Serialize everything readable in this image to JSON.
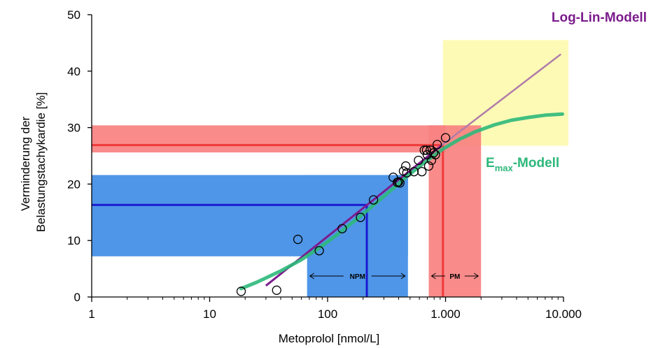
{
  "chart_data": {
    "type": "scatter",
    "xlabel": "Metoprolol [nmol/L]",
    "ylabel_lines": [
      "Verminderung der",
      "Belastungstachykardie [%]"
    ],
    "x_scale": "log",
    "xlim": [
      1,
      10000
    ],
    "ylim": [
      0,
      50
    ],
    "x_ticks": [
      {
        "value": 1,
        "label": "1"
      },
      {
        "value": 10,
        "label": "10"
      },
      {
        "value": 100,
        "label": "100"
      },
      {
        "value": 1000,
        "label": "1.000"
      },
      {
        "value": 10000,
        "label": "10.000"
      }
    ],
    "y_ticks": [
      {
        "value": 0,
        "label": "0"
      },
      {
        "value": 10,
        "label": "10"
      },
      {
        "value": 20,
        "label": "20"
      },
      {
        "value": 30,
        "label": "30"
      },
      {
        "value": 40,
        "label": "40"
      },
      {
        "value": 50,
        "label": "50"
      }
    ],
    "observations": [
      {
        "x": 18.5,
        "y": 1.0
      },
      {
        "x": 37,
        "y": 1.2
      },
      {
        "x": 56,
        "y": 10.2
      },
      {
        "x": 85,
        "y": 8.2
      },
      {
        "x": 133,
        "y": 12.1
      },
      {
        "x": 190,
        "y": 14.1
      },
      {
        "x": 245,
        "y": 17.2
      },
      {
        "x": 360,
        "y": 21.2
      },
      {
        "x": 390,
        "y": 20.3
      },
      {
        "x": 400,
        "y": 20.4
      },
      {
        "x": 410,
        "y": 20.2
      },
      {
        "x": 440,
        "y": 22.3
      },
      {
        "x": 460,
        "y": 23.2
      },
      {
        "x": 470,
        "y": 22.0
      },
      {
        "x": 540,
        "y": 22.2
      },
      {
        "x": 590,
        "y": 24.2
      },
      {
        "x": 630,
        "y": 22.2
      },
      {
        "x": 660,
        "y": 26.0
      },
      {
        "x": 690,
        "y": 26.0
      },
      {
        "x": 700,
        "y": 25.2
      },
      {
        "x": 720,
        "y": 23.2
      },
      {
        "x": 740,
        "y": 26.0
      },
      {
        "x": 760,
        "y": 24.2
      },
      {
        "x": 790,
        "y": 25.5
      },
      {
        "x": 820,
        "y": 25.2
      },
      {
        "x": 850,
        "y": 27.0
      },
      {
        "x": 1000,
        "y": 28.2
      }
    ],
    "loglin_model": {
      "label": "Log-Lin-Modell",
      "color": "#7b1c8c",
      "color_light": "#b07ca8",
      "x": [
        30,
        920,
        9500
      ],
      "y": [
        2.0,
        26.8,
        43.0
      ]
    },
    "emax_model": {
      "label_main": "E",
      "label_sub": "max",
      "label_suffix": "-Modell",
      "color": "#2cb87a",
      "x": [
        18.5,
        25,
        40,
        60,
        85,
        120,
        170,
        240,
        340,
        480,
        680,
        950,
        1300,
        1800,
        2600,
        3600,
        5000,
        7000,
        9800
      ],
      "y": [
        1.5,
        2.6,
        4.6,
        6.6,
        8.7,
        11.0,
        13.5,
        16.1,
        18.8,
        21.5,
        24.0,
        26.2,
        27.9,
        29.3,
        30.5,
        31.3,
        31.8,
        32.2,
        32.4
      ]
    },
    "npm_region": {
      "label": "NPM",
      "color": "#4f96e8",
      "horizontal_band": {
        "x_from": 1,
        "x_to": 480,
        "y_from": 7.2,
        "y_to": 21.6
      },
      "vertical_band": {
        "x_from": 67,
        "x_to": 480,
        "y_from": 0,
        "y_to": 21.6
      },
      "marker_line_color": "#1a1ad0",
      "marker_x": 215,
      "marker_y": 16.3
    },
    "pm_region": {
      "label": "PM",
      "color": "#f98181",
      "horizontal_band": {
        "x_from": 1,
        "x_to": 1000,
        "y_from": 25.6,
        "y_to": 30.4
      },
      "vertical_band": {
        "x_from": 720,
        "x_to": 2000,
        "y_from": 0,
        "y_to": 30.4
      },
      "marker_line_color": "#f03a3a",
      "marker_x": 950,
      "marker_y": 26.9
    },
    "yellow_region": {
      "color": "#fdfab6",
      "x_from": 950,
      "x_to": 11000,
      "y_from": 26.8,
      "y_to": 45.5
    }
  }
}
